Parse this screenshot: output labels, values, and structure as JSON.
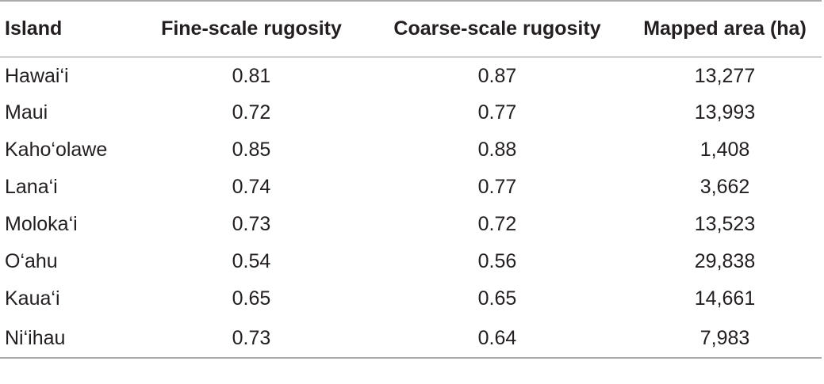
{
  "table": {
    "headers": [
      "Island",
      "Fine-scale rugosity",
      "Coarse-scale rugosity",
      "Mapped area (ha)"
    ],
    "rows": [
      [
        "Hawai‘i",
        "0.81",
        "0.87",
        "13,277"
      ],
      [
        "Maui",
        "0.72",
        "0.77",
        "13,993"
      ],
      [
        "Kaho‘olawe",
        "0.85",
        "0.88",
        "1,408"
      ],
      [
        "Lana‘i",
        "0.74",
        "0.77",
        "3,662"
      ],
      [
        "Moloka‘i",
        "0.73",
        "0.72",
        "13,523"
      ],
      [
        "O‘ahu",
        "0.54",
        "0.56",
        "29,838"
      ],
      [
        "Kaua‘i",
        "0.65",
        "0.65",
        "14,661"
      ],
      [
        "Ni‘ihau",
        "0.73",
        "0.64",
        "7,983"
      ]
    ]
  }
}
